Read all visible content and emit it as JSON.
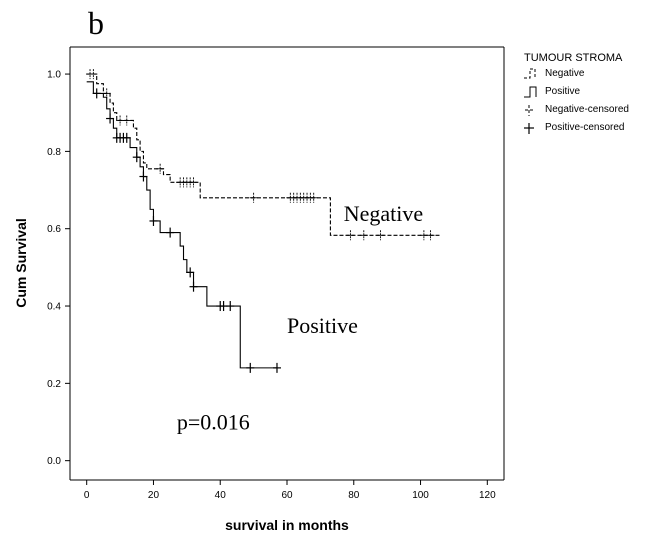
{
  "panel_label": "b",
  "chart_data": {
    "type": "line",
    "subtype": "kaplan-meier",
    "xlabel": "survival in months",
    "ylabel": "Cum Survival",
    "xlim": [
      -5,
      125
    ],
    "ylim": [
      -0.05,
      1.07
    ],
    "xticks": [
      0,
      20,
      40,
      60,
      80,
      100,
      120
    ],
    "yticks": [
      0.0,
      0.2,
      0.4,
      0.6,
      0.8,
      1.0
    ],
    "grid": false,
    "legend": {
      "title": "TUMOUR STROMA",
      "placement": "top-right outside",
      "entries": [
        "Negative",
        "Positive",
        "Negative-censored",
        "Positive-censored"
      ]
    },
    "annotations": [
      {
        "text": "Negative",
        "x": 77,
        "y": 0.62
      },
      {
        "text": "Positive",
        "x": 60,
        "y": 0.33
      },
      {
        "text": "p=0.016",
        "x": 27,
        "y": 0.08
      }
    ],
    "series": [
      {
        "name": "Negative",
        "line_style": "dashed",
        "color": "#000000",
        "steps": [
          [
            0,
            1.0
          ],
          [
            3,
            0.975
          ],
          [
            5,
            0.95
          ],
          [
            7,
            0.925
          ],
          [
            8,
            0.9
          ],
          [
            9,
            0.88
          ],
          [
            14,
            0.86
          ],
          [
            15,
            0.83
          ],
          [
            16,
            0.8
          ],
          [
            17,
            0.77
          ],
          [
            18,
            0.755
          ],
          [
            23,
            0.74
          ],
          [
            25,
            0.72
          ],
          [
            34,
            0.68
          ],
          [
            73,
            0.583
          ],
          [
            106,
            0.583
          ]
        ],
        "censored": [
          [
            1,
            1.0
          ],
          [
            2,
            1.0
          ],
          [
            6,
            0.95
          ],
          [
            10,
            0.88
          ],
          [
            12,
            0.88
          ],
          [
            22,
            0.755
          ],
          [
            28,
            0.72
          ],
          [
            29,
            0.72
          ],
          [
            30,
            0.72
          ],
          [
            31,
            0.72
          ],
          [
            32,
            0.72
          ],
          [
            50,
            0.68
          ],
          [
            61,
            0.68
          ],
          [
            62,
            0.68
          ],
          [
            63,
            0.68
          ],
          [
            64,
            0.68
          ],
          [
            65,
            0.68
          ],
          [
            66,
            0.68
          ],
          [
            67,
            0.68
          ],
          [
            68,
            0.68
          ],
          [
            79,
            0.583
          ],
          [
            83,
            0.583
          ],
          [
            88,
            0.583
          ],
          [
            101,
            0.583
          ],
          [
            103,
            0.583
          ]
        ]
      },
      {
        "name": "Positive",
        "line_style": "solid",
        "color": "#000000",
        "steps": [
          [
            0,
            0.98
          ],
          [
            2,
            0.95
          ],
          [
            5,
            0.94
          ],
          [
            6,
            0.91
          ],
          [
            7,
            0.885
          ],
          [
            8,
            0.86
          ],
          [
            9,
            0.835
          ],
          [
            13,
            0.81
          ],
          [
            15,
            0.785
          ],
          [
            16,
            0.76
          ],
          [
            17,
            0.735
          ],
          [
            18,
            0.7
          ],
          [
            19,
            0.65
          ],
          [
            20,
            0.62
          ],
          [
            22,
            0.59
          ],
          [
            28,
            0.555
          ],
          [
            29,
            0.52
          ],
          [
            30,
            0.487
          ],
          [
            32,
            0.45
          ],
          [
            36,
            0.4
          ],
          [
            46,
            0.24
          ],
          [
            57,
            0.24
          ]
        ],
        "censored": [
          [
            3,
            0.95
          ],
          [
            7,
            0.885
          ],
          [
            9,
            0.835
          ],
          [
            10,
            0.835
          ],
          [
            11,
            0.835
          ],
          [
            12,
            0.835
          ],
          [
            15,
            0.785
          ],
          [
            17,
            0.735
          ],
          [
            20,
            0.62
          ],
          [
            25,
            0.59
          ],
          [
            31,
            0.487
          ],
          [
            32,
            0.45
          ],
          [
            40,
            0.4
          ],
          [
            41,
            0.4
          ],
          [
            43,
            0.4
          ],
          [
            49,
            0.24
          ],
          [
            57,
            0.24
          ]
        ]
      }
    ]
  }
}
